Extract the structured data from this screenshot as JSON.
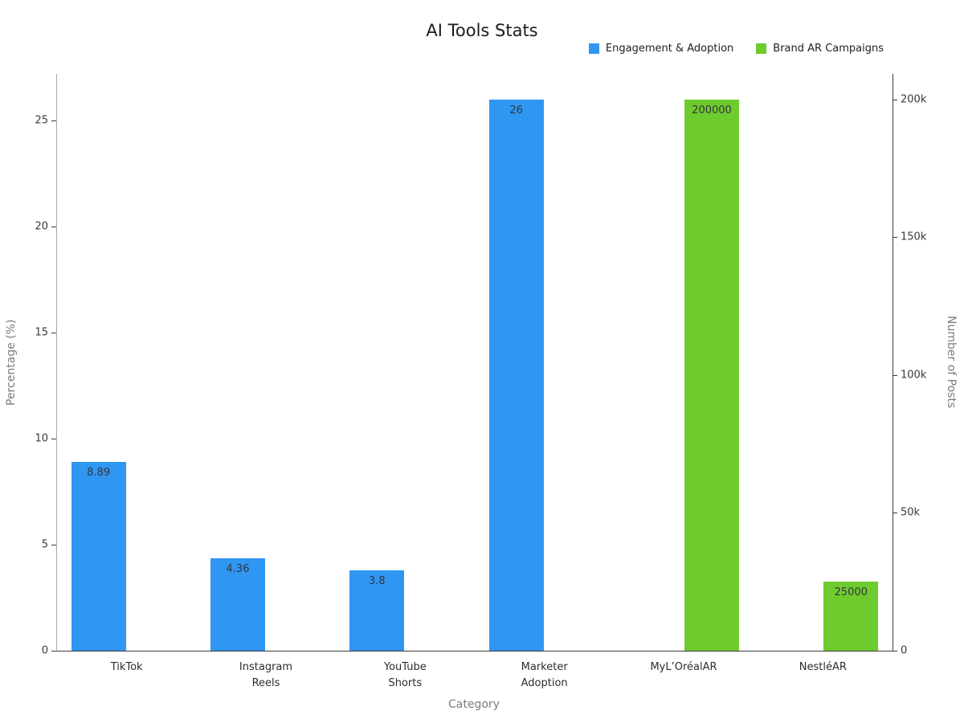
{
  "title": "AI Tools Stats",
  "chart_data": {
    "type": "bar",
    "categories": [
      "TikTok",
      "Instagram\nReels",
      "YouTube\nShorts",
      "Marketer\nAdoption",
      "MyL’OréalAR",
      "NestléAR"
    ],
    "series": [
      {
        "name": "Engagement & Adoption",
        "axis": "left",
        "color": "#2f96f2",
        "values": [
          8.89,
          4.36,
          3.8,
          26,
          null,
          null
        ],
        "value_labels": [
          "8.89",
          "4.36",
          "3.8",
          "26",
          null,
          null
        ]
      },
      {
        "name": "Brand AR Campaigns",
        "axis": "right",
        "color": "#6ecb2e",
        "values": [
          null,
          null,
          null,
          null,
          200000,
          25000
        ],
        "value_labels": [
          null,
          null,
          null,
          null,
          "200000",
          "25000"
        ]
      }
    ],
    "title": "AI Tools Stats",
    "xlabel": "Category",
    "ylabel_left": "Percentage (%)",
    "ylabel_right": "Number of Posts",
    "yticks_left": [
      0,
      5,
      10,
      15,
      20,
      25
    ],
    "yticks_right_values": [
      0,
      50000,
      100000,
      150000,
      200000
    ],
    "yticks_right_labels": [
      "0",
      "50k",
      "100k",
      "150k",
      "200k"
    ],
    "ylim_left": [
      0,
      27.2
    ],
    "ylim_right": [
      0,
      209300
    ],
    "grid": false,
    "legend_position": "top-right"
  }
}
